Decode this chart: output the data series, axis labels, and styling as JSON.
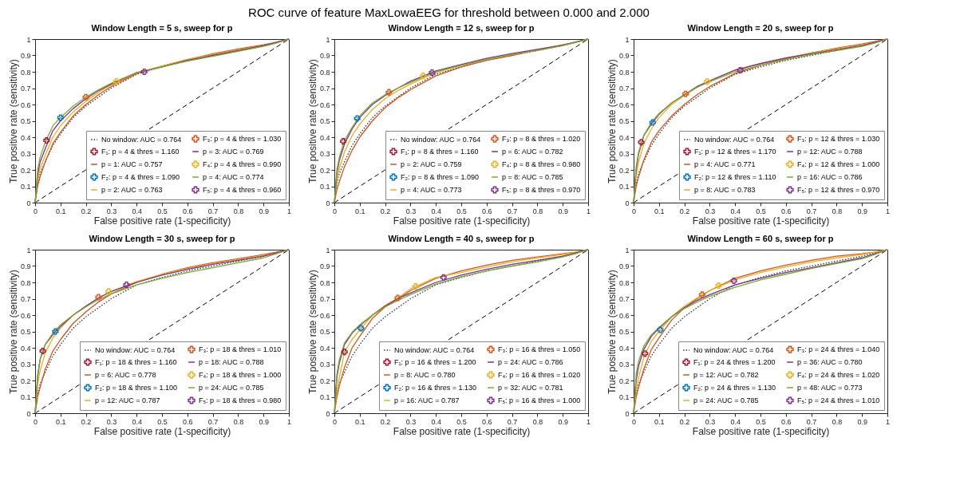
{
  "chart_data": [
    {
      "type": "line",
      "title": "Window Length = 5 s, sweep for p",
      "xlabel": "False positive rate (1-specificity)",
      "ylabel": "True positive rate (sensitivity)",
      "annotations": [
        "ROC curve of feature MaxLowaEEG for threshold between 0.000 and 2.000"
      ],
      "xlim": [
        0,
        1
      ],
      "ylim": [
        0,
        1
      ],
      "xticks": [
        0,
        0.1,
        0.2,
        0.3,
        0.4,
        0.5,
        0.6,
        0.7,
        0.8,
        0.9,
        1
      ],
      "yticks": [
        0,
        0.1,
        0.2,
        0.3,
        0.4,
        0.5,
        0.6,
        0.7,
        0.8,
        0.9,
        1
      ],
      "legend": "bottom right",
      "x": [
        0,
        0.01,
        0.02,
        0.04,
        0.07,
        0.1,
        0.15,
        0.2,
        0.25,
        0.3,
        0.4,
        0.5,
        0.6,
        0.7,
        0.8,
        0.9,
        0.95,
        1
      ],
      "series": [
        {
          "name": "No window: AUC = 0.764",
          "color": "#333333",
          "line_style": "dotted",
          "values": [
            0,
            0.12,
            0.18,
            0.25,
            0.35,
            0.42,
            0.52,
            0.59,
            0.645,
            0.7,
            0.785,
            0.83,
            0.87,
            0.9,
            0.93,
            0.96,
            0.98,
            1
          ]
        },
        {
          "name": "p = 1: AUC = 0.757",
          "color": "#d95319",
          "line_style": "solid",
          "values": [
            0,
            0.1,
            0.16,
            0.25,
            0.36,
            0.43,
            0.53,
            0.6,
            0.66,
            0.71,
            0.79,
            0.835,
            0.875,
            0.91,
            0.94,
            0.965,
            0.98,
            1
          ]
        },
        {
          "name": "p = 2: AUC = 0.763",
          "color": "#edb120",
          "line_style": "solid",
          "values": [
            0,
            0.14,
            0.21,
            0.29,
            0.4,
            0.47,
            0.555,
            0.62,
            0.675,
            0.72,
            0.795,
            0.835,
            0.875,
            0.905,
            0.935,
            0.96,
            0.98,
            1
          ]
        },
        {
          "name": "p = 3: AUC = 0.769",
          "color": "#7e2f8e",
          "line_style": "solid",
          "values": [
            0,
            0.17,
            0.25,
            0.33,
            0.44,
            0.5,
            0.575,
            0.635,
            0.685,
            0.725,
            0.795,
            0.83,
            0.87,
            0.9,
            0.93,
            0.96,
            0.98,
            1
          ]
        },
        {
          "name": "p = 4: AUC = 0.774",
          "color": "#77ac30",
          "line_style": "solid",
          "values": [
            0,
            0.2,
            0.28,
            0.37,
            0.47,
            0.52,
            0.59,
            0.645,
            0.69,
            0.73,
            0.795,
            0.83,
            0.865,
            0.895,
            0.925,
            0.955,
            0.975,
            1
          ]
        },
        {
          "type": "line",
          "color": "#000000",
          "line_style": "dashed",
          "x": [
            0,
            1
          ],
          "values": [
            0,
            1
          ]
        },
        {
          "type": "scatter",
          "name": "F₁: p = 4 & thres = 1.160",
          "color": "#a2142f",
          "marker": "cross",
          "x": [
            0.045
          ],
          "values": [
            0.38
          ]
        },
        {
          "type": "scatter",
          "name": "F₂: p = 4 & thres = 1.090",
          "color": "#0072bd",
          "marker": "cross",
          "x": [
            0.1
          ],
          "values": [
            0.52
          ]
        },
        {
          "type": "scatter",
          "name": "F₃: p = 4 & thres = 1.030",
          "color": "#d95319",
          "marker": "cross",
          "x": [
            0.2
          ],
          "values": [
            0.645
          ]
        },
        {
          "type": "scatter",
          "name": "F₄: p = 4 & thres = 0.990",
          "color": "#edb120",
          "marker": "cross",
          "x": [
            0.32
          ],
          "values": [
            0.74
          ]
        },
        {
          "type": "scatter",
          "name": "F₅: p = 4 & thres = 0.960",
          "color": "#7e2f8e",
          "marker": "cross",
          "x": [
            0.43
          ],
          "values": [
            0.8
          ]
        }
      ]
    },
    {
      "type": "line",
      "title": "Window Length = 12 s, sweep for p",
      "xlabel": "False positive rate (1-specificity)",
      "ylabel": "True positive rate (sensitivity)",
      "xlim": [
        0,
        1
      ],
      "ylim": [
        0,
        1
      ],
      "xticks": [
        0,
        0.1,
        0.2,
        0.3,
        0.4,
        0.5,
        0.6,
        0.7,
        0.8,
        0.9,
        1
      ],
      "yticks": [
        0,
        0.1,
        0.2,
        0.3,
        0.4,
        0.5,
        0.6,
        0.7,
        0.8,
        0.9,
        1
      ],
      "legend": "bottom right",
      "x": [
        0,
        0.01,
        0.02,
        0.04,
        0.07,
        0.1,
        0.15,
        0.2,
        0.25,
        0.3,
        0.4,
        0.5,
        0.6,
        0.7,
        0.8,
        0.9,
        0.95,
        1
      ],
      "series": [
        {
          "name": "No window: AUC = 0.764",
          "color": "#333333",
          "line_style": "dotted",
          "values": [
            0,
            0.12,
            0.18,
            0.25,
            0.35,
            0.42,
            0.52,
            0.59,
            0.645,
            0.7,
            0.785,
            0.83,
            0.87,
            0.9,
            0.93,
            0.96,
            0.98,
            1
          ]
        },
        {
          "name": "p = 2: AUC = 0.759",
          "color": "#d95319",
          "line_style": "solid",
          "values": [
            0,
            0.08,
            0.13,
            0.22,
            0.32,
            0.4,
            0.5,
            0.58,
            0.64,
            0.69,
            0.775,
            0.83,
            0.87,
            0.9,
            0.935,
            0.965,
            0.98,
            1
          ]
        },
        {
          "name": "p = 4: AUC = 0.773",
          "color": "#edb120",
          "line_style": "solid",
          "values": [
            0,
            0.14,
            0.21,
            0.31,
            0.41,
            0.48,
            0.57,
            0.635,
            0.685,
            0.725,
            0.795,
            0.84,
            0.875,
            0.905,
            0.935,
            0.96,
            0.98,
            1
          ]
        },
        {
          "name": "p = 6: AUC = 0.782",
          "color": "#7e2f8e",
          "line_style": "solid",
          "values": [
            0,
            0.18,
            0.26,
            0.36,
            0.45,
            0.52,
            0.6,
            0.655,
            0.7,
            0.742,
            0.805,
            0.845,
            0.882,
            0.912,
            0.937,
            0.963,
            0.982,
            1
          ]
        },
        {
          "name": "p = 8: AUC = 0.785",
          "color": "#77ac30",
          "line_style": "solid",
          "values": [
            0,
            0.2,
            0.28,
            0.38,
            0.46,
            0.53,
            0.61,
            0.66,
            0.7,
            0.735,
            0.8,
            0.84,
            0.875,
            0.905,
            0.93,
            0.96,
            0.98,
            1
          ]
        },
        {
          "type": "line",
          "color": "#000000",
          "line_style": "dashed",
          "x": [
            0,
            1
          ],
          "values": [
            0,
            1
          ]
        },
        {
          "type": "scatter",
          "name": "F₁: p = 8 & thres = 1.160",
          "color": "#a2142f",
          "marker": "cross",
          "x": [
            0.035
          ],
          "values": [
            0.375
          ]
        },
        {
          "type": "scatter",
          "name": "F₂: p = 8 & thres = 1.090",
          "color": "#0072bd",
          "marker": "cross",
          "x": [
            0.09
          ],
          "values": [
            0.515
          ]
        },
        {
          "type": "scatter",
          "name": "F₃: p = 8 & thres = 1.020",
          "color": "#d95319",
          "marker": "cross",
          "x": [
            0.215
          ],
          "values": [
            0.675
          ]
        },
        {
          "type": "scatter",
          "name": "F₄: p = 8 & thres = 0.980",
          "color": "#edb120",
          "marker": "cross",
          "x": [
            0.35
          ],
          "values": [
            0.775
          ]
        },
        {
          "type": "scatter",
          "name": "F₅: p = 8 & thres = 0.970",
          "color": "#7e2f8e",
          "marker": "cross",
          "x": [
            0.385
          ],
          "values": [
            0.795
          ]
        }
      ]
    },
    {
      "type": "line",
      "title": "Window Length = 20 s, sweep for p",
      "xlabel": "False positive rate (1-specificity)",
      "ylabel": "True positive rate (sensitivity)",
      "xlim": [
        0,
        1
      ],
      "ylim": [
        0,
        1
      ],
      "xticks": [
        0,
        0.1,
        0.2,
        0.3,
        0.4,
        0.5,
        0.6,
        0.7,
        0.8,
        0.9,
        1
      ],
      "yticks": [
        0,
        0.1,
        0.2,
        0.3,
        0.4,
        0.5,
        0.6,
        0.7,
        0.8,
        0.9,
        1
      ],
      "legend": "bottom right",
      "x": [
        0,
        0.01,
        0.02,
        0.04,
        0.07,
        0.1,
        0.15,
        0.2,
        0.25,
        0.3,
        0.4,
        0.5,
        0.6,
        0.7,
        0.8,
        0.9,
        0.95,
        1
      ],
      "series": [
        {
          "name": "No window: AUC = 0.764",
          "color": "#333333",
          "line_style": "dotted",
          "values": [
            0,
            0.12,
            0.18,
            0.25,
            0.35,
            0.42,
            0.52,
            0.59,
            0.645,
            0.7,
            0.785,
            0.83,
            0.87,
            0.9,
            0.93,
            0.96,
            0.98,
            1
          ]
        },
        {
          "name": "p = 4: AUC = 0.771",
          "color": "#d95319",
          "line_style": "solid",
          "values": [
            0,
            0.1,
            0.16,
            0.26,
            0.37,
            0.44,
            0.53,
            0.6,
            0.66,
            0.71,
            0.79,
            0.84,
            0.88,
            0.915,
            0.945,
            0.97,
            0.985,
            1
          ]
        },
        {
          "name": "p = 8: AUC = 0.783",
          "color": "#edb120",
          "line_style": "solid",
          "values": [
            0,
            0.17,
            0.25,
            0.36,
            0.45,
            0.52,
            0.6,
            0.655,
            0.705,
            0.745,
            0.81,
            0.85,
            0.885,
            0.915,
            0.94,
            0.965,
            0.98,
            1
          ]
        },
        {
          "name": "p = 12: AUC = 0.788",
          "color": "#7e2f8e",
          "line_style": "solid",
          "values": [
            0,
            0.2,
            0.3,
            0.41,
            0.48,
            0.54,
            0.61,
            0.66,
            0.71,
            0.745,
            0.81,
            0.85,
            0.885,
            0.91,
            0.935,
            0.96,
            0.98,
            1
          ]
        },
        {
          "name": "p = 16: AUC = 0.786",
          "color": "#77ac30",
          "line_style": "solid",
          "values": [
            0,
            0.22,
            0.31,
            0.41,
            0.49,
            0.545,
            0.61,
            0.66,
            0.705,
            0.74,
            0.8,
            0.84,
            0.875,
            0.905,
            0.93,
            0.955,
            0.975,
            1
          ]
        },
        {
          "type": "line",
          "color": "#000000",
          "line_style": "dashed",
          "x": [
            0,
            1
          ],
          "values": [
            0,
            1
          ]
        },
        {
          "type": "scatter",
          "name": "F₁: p = 12 & thres = 1.170",
          "color": "#a2142f",
          "marker": "cross",
          "x": [
            0.03
          ],
          "values": [
            0.37
          ]
        },
        {
          "type": "scatter",
          "name": "F₂: p = 12 & thres = 1.110",
          "color": "#0072bd",
          "marker": "cross",
          "x": [
            0.075
          ],
          "values": [
            0.49
          ]
        },
        {
          "type": "scatter",
          "name": "F₃: p = 12 & thres = 1.030",
          "color": "#d95319",
          "marker": "cross",
          "x": [
            0.205
          ],
          "values": [
            0.665
          ]
        },
        {
          "type": "scatter",
          "name": "F₄: p = 12 & thres = 1.000",
          "color": "#edb120",
          "marker": "cross",
          "x": [
            0.29
          ],
          "values": [
            0.74
          ]
        },
        {
          "type": "scatter",
          "name": "F₅: p = 12 & thres = 0.970",
          "color": "#7e2f8e",
          "marker": "cross",
          "x": [
            0.42
          ],
          "values": [
            0.81
          ]
        }
      ]
    },
    {
      "type": "line",
      "title": "Window Length = 30 s, sweep for p",
      "xlabel": "False positive rate (1-specificity)",
      "ylabel": "True positive rate (sensitivity)",
      "xlim": [
        0,
        1
      ],
      "ylim": [
        0,
        1
      ],
      "xticks": [
        0,
        0.1,
        0.2,
        0.3,
        0.4,
        0.5,
        0.6,
        0.7,
        0.8,
        0.9,
        1
      ],
      "yticks": [
        0,
        0.1,
        0.2,
        0.3,
        0.4,
        0.5,
        0.6,
        0.7,
        0.8,
        0.9,
        1
      ],
      "legend": "bottom right",
      "x": [
        0,
        0.01,
        0.02,
        0.04,
        0.07,
        0.1,
        0.15,
        0.2,
        0.25,
        0.3,
        0.4,
        0.5,
        0.6,
        0.7,
        0.8,
        0.9,
        0.95,
        1
      ],
      "series": [
        {
          "name": "No window: AUC = 0.764",
          "color": "#333333",
          "line_style": "dotted",
          "values": [
            0,
            0.12,
            0.18,
            0.25,
            0.35,
            0.42,
            0.52,
            0.59,
            0.645,
            0.7,
            0.785,
            0.83,
            0.87,
            0.9,
            0.93,
            0.96,
            0.98,
            1
          ]
        },
        {
          "name": "p = 6: AUC = 0.778",
          "color": "#d95319",
          "line_style": "solid",
          "values": [
            0,
            0.1,
            0.16,
            0.27,
            0.38,
            0.45,
            0.55,
            0.62,
            0.68,
            0.73,
            0.8,
            0.85,
            0.89,
            0.92,
            0.945,
            0.97,
            0.985,
            1
          ]
        },
        {
          "name": "p = 12: AUC = 0.787",
          "color": "#edb120",
          "line_style": "solid",
          "values": [
            0,
            0.18,
            0.26,
            0.37,
            0.46,
            0.52,
            0.6,
            0.655,
            0.705,
            0.745,
            0.805,
            0.85,
            0.885,
            0.915,
            0.94,
            0.965,
            0.98,
            1
          ]
        },
        {
          "name": "p = 18: AUC = 0.788",
          "color": "#7e2f8e",
          "line_style": "solid",
          "values": [
            0,
            0.22,
            0.33,
            0.42,
            0.48,
            0.53,
            0.6,
            0.655,
            0.705,
            0.745,
            0.8,
            0.845,
            0.88,
            0.91,
            0.935,
            0.96,
            0.98,
            1
          ]
        },
        {
          "name": "p = 24: AUC = 0.785",
          "color": "#77ac30",
          "line_style": "solid",
          "values": [
            0,
            0.24,
            0.33,
            0.42,
            0.49,
            0.54,
            0.6,
            0.65,
            0.695,
            0.73,
            0.785,
            0.825,
            0.86,
            0.89,
            0.92,
            0.95,
            0.975,
            1
          ]
        },
        {
          "type": "line",
          "color": "#000000",
          "line_style": "dashed",
          "x": [
            0,
            1
          ],
          "values": [
            0,
            1
          ]
        },
        {
          "type": "scatter",
          "name": "F₁: p = 18 & thres = 1.160",
          "color": "#a2142f",
          "marker": "cross",
          "x": [
            0.03
          ],
          "values": [
            0.38
          ]
        },
        {
          "type": "scatter",
          "name": "F₂: p = 18 & thres = 1.100",
          "color": "#0072bd",
          "marker": "cross",
          "x": [
            0.08
          ],
          "values": [
            0.5
          ]
        },
        {
          "type": "scatter",
          "name": "F₃: p = 18 & thres = 1.010",
          "color": "#d95319",
          "marker": "cross",
          "x": [
            0.25
          ],
          "values": [
            0.71
          ]
        },
        {
          "type": "scatter",
          "name": "F₄: p = 18 & thres = 1.000",
          "color": "#edb120",
          "marker": "cross",
          "x": [
            0.29
          ],
          "values": [
            0.745
          ]
        },
        {
          "type": "scatter",
          "name": "F₅: p = 18 & thres = 0.980",
          "color": "#7e2f8e",
          "marker": "cross",
          "x": [
            0.36
          ],
          "values": [
            0.785
          ]
        }
      ]
    },
    {
      "type": "line",
      "title": "Window Length = 40 s, sweep for p",
      "xlabel": "False positive rate (1-specificity)",
      "ylabel": "True positive rate (sensitivity)",
      "xlim": [
        0,
        1
      ],
      "ylim": [
        0,
        1
      ],
      "xticks": [
        0,
        0.1,
        0.2,
        0.3,
        0.4,
        0.5,
        0.6,
        0.7,
        0.8,
        0.9,
        1
      ],
      "yticks": [
        0,
        0.1,
        0.2,
        0.3,
        0.4,
        0.5,
        0.6,
        0.7,
        0.8,
        0.9,
        1
      ],
      "legend": "bottom right",
      "x": [
        0,
        0.01,
        0.02,
        0.04,
        0.07,
        0.1,
        0.15,
        0.2,
        0.25,
        0.3,
        0.4,
        0.5,
        0.6,
        0.7,
        0.8,
        0.9,
        0.95,
        1
      ],
      "series": [
        {
          "name": "No window: AUC = 0.764",
          "color": "#333333",
          "line_style": "dotted",
          "values": [
            0,
            0.12,
            0.18,
            0.25,
            0.35,
            0.42,
            0.52,
            0.59,
            0.645,
            0.7,
            0.785,
            0.83,
            0.87,
            0.9,
            0.93,
            0.96,
            0.98,
            1
          ]
        },
        {
          "name": "p = 8: AUC = 0.780",
          "color": "#d95319",
          "line_style": "solid",
          "values": [
            0,
            0.1,
            0.17,
            0.28,
            0.4,
            0.47,
            0.58,
            0.65,
            0.7,
            0.75,
            0.825,
            0.87,
            0.905,
            0.935,
            0.955,
            0.975,
            0.985,
            1
          ]
        },
        {
          "name": "p = 16: AUC = 0.787",
          "color": "#edb120",
          "line_style": "solid",
          "values": [
            0,
            0.14,
            0.22,
            0.375,
            0.45,
            0.51,
            0.6,
            0.66,
            0.705,
            0.76,
            0.83,
            0.86,
            0.895,
            0.925,
            0.95,
            0.97,
            0.985,
            1
          ]
        },
        {
          "name": "p = 24: AUC = 0.786",
          "color": "#7e2f8e",
          "line_style": "solid",
          "values": [
            0,
            0.22,
            0.31,
            0.42,
            0.49,
            0.535,
            0.6,
            0.655,
            0.7,
            0.735,
            0.8,
            0.845,
            0.88,
            0.91,
            0.935,
            0.96,
            0.98,
            1
          ]
        },
        {
          "name": "p = 32: AUC = 0.781",
          "color": "#77ac30",
          "line_style": "solid",
          "values": [
            0,
            0.24,
            0.33,
            0.43,
            0.495,
            0.54,
            0.6,
            0.65,
            0.69,
            0.725,
            0.79,
            0.835,
            0.87,
            0.9,
            0.925,
            0.955,
            0.975,
            1
          ]
        },
        {
          "type": "line",
          "color": "#000000",
          "line_style": "dashed",
          "x": [
            0,
            1
          ],
          "values": [
            0,
            1
          ]
        },
        {
          "type": "scatter",
          "name": "F₁: p = 16 & thres = 1.200",
          "color": "#a2142f",
          "marker": "cross",
          "x": [
            0.04
          ],
          "values": [
            0.375
          ]
        },
        {
          "type": "scatter",
          "name": "F₂: p = 16 & thres = 1.130",
          "color": "#0072bd",
          "marker": "cross",
          "x": [
            0.105
          ],
          "values": [
            0.52
          ]
        },
        {
          "type": "scatter",
          "name": "F₃: p = 16 & thres = 1.050",
          "color": "#d95319",
          "marker": "cross",
          "x": [
            0.25
          ],
          "values": [
            0.705
          ]
        },
        {
          "type": "scatter",
          "name": "F₄: p = 16 & thres = 1.020",
          "color": "#edb120",
          "marker": "cross",
          "x": [
            0.32
          ],
          "values": [
            0.775
          ]
        },
        {
          "type": "scatter",
          "name": "F₅: p = 16 & thres = 1.000",
          "color": "#7e2f8e",
          "marker": "cross",
          "x": [
            0.43
          ],
          "values": [
            0.83
          ]
        }
      ]
    },
    {
      "type": "line",
      "title": "Window Length = 60 s, sweep for p",
      "xlabel": "False positive rate (1-specificity)",
      "ylabel": "True positive rate (sensitivity)",
      "xlim": [
        0,
        1
      ],
      "ylim": [
        0,
        1
      ],
      "xticks": [
        0,
        0.1,
        0.2,
        0.3,
        0.4,
        0.5,
        0.6,
        0.7,
        0.8,
        0.9,
        1
      ],
      "yticks": [
        0,
        0.1,
        0.2,
        0.3,
        0.4,
        0.5,
        0.6,
        0.7,
        0.8,
        0.9,
        1
      ],
      "legend": "bottom right",
      "x": [
        0,
        0.01,
        0.02,
        0.04,
        0.07,
        0.1,
        0.15,
        0.2,
        0.25,
        0.3,
        0.4,
        0.5,
        0.6,
        0.7,
        0.8,
        0.9,
        0.95,
        1
      ],
      "series": [
        {
          "name": "No window: AUC = 0.764",
          "color": "#333333",
          "line_style": "dotted",
          "values": [
            0,
            0.12,
            0.18,
            0.25,
            0.35,
            0.42,
            0.52,
            0.59,
            0.645,
            0.7,
            0.785,
            0.83,
            0.87,
            0.9,
            0.93,
            0.96,
            0.98,
            1
          ]
        },
        {
          "name": "p = 12: AUC = 0.782",
          "color": "#d95319",
          "line_style": "solid",
          "values": [
            0,
            0.1,
            0.16,
            0.27,
            0.39,
            0.46,
            0.57,
            0.645,
            0.7,
            0.75,
            0.825,
            0.87,
            0.905,
            0.935,
            0.96,
            0.975,
            0.985,
            1
          ]
        },
        {
          "name": "p = 24: AUC = 0.785",
          "color": "#edb120",
          "line_style": "solid",
          "values": [
            0,
            0.14,
            0.22,
            0.34,
            0.44,
            0.5,
            0.59,
            0.655,
            0.705,
            0.75,
            0.815,
            0.86,
            0.895,
            0.925,
            0.95,
            0.97,
            0.985,
            1
          ]
        },
        {
          "name": "p = 36: AUC = 0.780",
          "color": "#7e2f8e",
          "line_style": "solid",
          "values": [
            0,
            0.2,
            0.29,
            0.39,
            0.47,
            0.52,
            0.59,
            0.645,
            0.69,
            0.725,
            0.785,
            0.825,
            0.86,
            0.89,
            0.92,
            0.95,
            0.975,
            1
          ]
        },
        {
          "name": "p = 48: AUC = 0.773",
          "color": "#77ac30",
          "line_style": "solid",
          "values": [
            0,
            0.24,
            0.32,
            0.41,
            0.48,
            0.525,
            0.59,
            0.64,
            0.68,
            0.715,
            0.77,
            0.815,
            0.85,
            0.885,
            0.915,
            0.945,
            0.97,
            1
          ]
        },
        {
          "type": "line",
          "color": "#000000",
          "line_style": "dashed",
          "x": [
            0,
            1
          ],
          "values": [
            0,
            1
          ]
        },
        {
          "type": "scatter",
          "name": "F₁: p = 24 & thres = 1.200",
          "color": "#a2142f",
          "marker": "cross",
          "x": [
            0.045
          ],
          "values": [
            0.365
          ]
        },
        {
          "type": "scatter",
          "name": "F₂: p = 24 & thres = 1.130",
          "color": "#0072bd",
          "marker": "cross",
          "x": [
            0.105
          ],
          "values": [
            0.51
          ]
        },
        {
          "type": "scatter",
          "name": "F₃: p = 24 & thres = 1.040",
          "color": "#d95319",
          "marker": "cross",
          "x": [
            0.27
          ],
          "values": [
            0.725
          ]
        },
        {
          "type": "scatter",
          "name": "F₄: p = 24 & thres = 1.020",
          "color": "#edb120",
          "marker": "cross",
          "x": [
            0.335
          ],
          "values": [
            0.78
          ]
        },
        {
          "type": "scatter",
          "name": "F₅: p = 24 & thres = 1.010",
          "color": "#7e2f8e",
          "marker": "cross",
          "x": [
            0.395
          ],
          "values": [
            0.81
          ]
        }
      ]
    }
  ]
}
